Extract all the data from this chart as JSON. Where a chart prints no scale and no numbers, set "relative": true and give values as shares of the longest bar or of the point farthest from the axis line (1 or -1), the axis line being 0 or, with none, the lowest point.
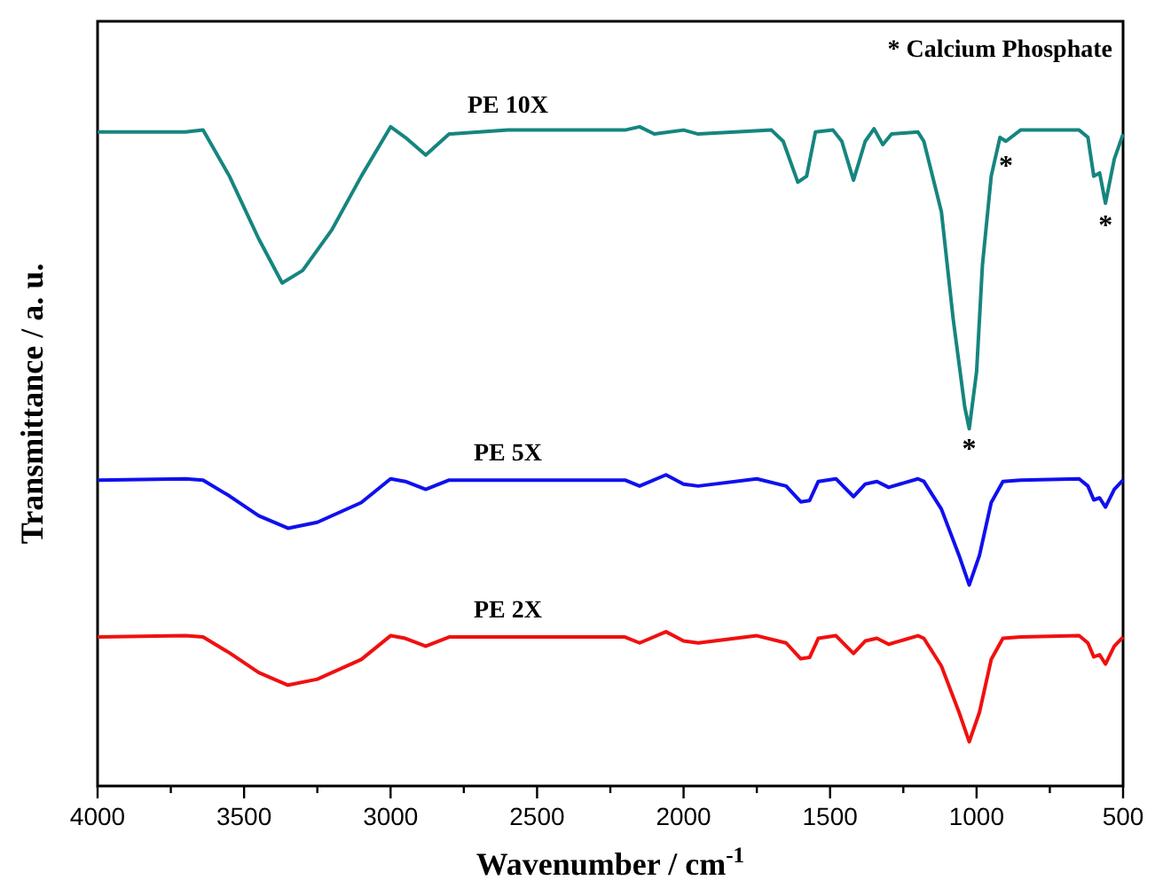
{
  "chart_data": {
    "type": "line",
    "relative": true,
    "xlabel": "Wavenumber / cm$^{-1}$",
    "ylabel": "Transmittance / a. u.",
    "xlim": [
      4000,
      500
    ],
    "xticks": [
      4000,
      {
        "value": 3750,
        "label": null
      },
      3500,
      {
        "value": 3250,
        "label": null
      },
      3000,
      {
        "value": 2750,
        "label": null
      },
      2500,
      {
        "value": 2250,
        "label": null
      },
      2000,
      {
        "value": 1750,
        "label": null
      },
      1500,
      {
        "value": 1250,
        "label": null
      },
      1000,
      {
        "value": 750,
        "label": null
      },
      500
    ],
    "tick_labels": "x",
    "grid": false,
    "legend": false,
    "marker": "none",
    "line_style": "solid",
    "annotations": [
      "* Calcium Phosphate",
      {
        "text": "*",
        "x": 1025,
        "y": 0.53
      },
      {
        "text": "*",
        "x": 900,
        "y": 0.96
      },
      {
        "text": "*",
        "x": 560,
        "y": 0.87
      }
    ],
    "series": [
      {
        "name": "PE 10X",
        "color": "#16857f",
        "x": [
          4000,
          3700,
          3640,
          3550,
          3450,
          3370,
          3300,
          3200,
          3100,
          3000,
          2950,
          2880,
          2800,
          2600,
          2200,
          2150,
          2100,
          2000,
          1950,
          1700,
          1660,
          1610,
          1580,
          1550,
          1490,
          1460,
          1420,
          1380,
          1350,
          1320,
          1290,
          1200,
          1180,
          1120,
          1080,
          1040,
          1025,
          1000,
          980,
          950,
          920,
          900,
          850,
          650,
          620,
          600,
          580,
          560,
          530,
          500
        ],
        "values": [
          0.992,
          0.992,
          0.995,
          0.925,
          0.83,
          0.763,
          0.782,
          0.844,
          0.925,
          1.0,
          0.984,
          0.957,
          0.989,
          0.995,
          0.995,
          1.0,
          0.989,
          0.995,
          0.989,
          0.995,
          0.978,
          0.916,
          0.925,
          0.992,
          0.995,
          0.978,
          0.919,
          0.978,
          0.997,
          0.973,
          0.989,
          0.992,
          0.978,
          0.871,
          0.709,
          0.574,
          0.542,
          0.628,
          0.79,
          0.925,
          0.984,
          0.978,
          0.995,
          0.995,
          0.984,
          0.925,
          0.93,
          0.884,
          0.951,
          0.989
        ]
      },
      {
        "name": "PE 5X",
        "color": "#1010ee",
        "x": [
          4000,
          3700,
          3640,
          3550,
          3450,
          3350,
          3250,
          3100,
          3000,
          2950,
          2880,
          2800,
          2200,
          2150,
          2060,
          2000,
          1950,
          1750,
          1650,
          1600,
          1570,
          1540,
          1480,
          1420,
          1380,
          1340,
          1300,
          1200,
          1180,
          1120,
          1060,
          1025,
          990,
          950,
          910,
          850,
          650,
          620,
          600,
          580,
          560,
          530,
          500
        ],
        "values": [
          0.464,
          0.466,
          0.464,
          0.44,
          0.41,
          0.391,
          0.4,
          0.43,
          0.466,
          0.462,
          0.45,
          0.464,
          0.464,
          0.455,
          0.472,
          0.458,
          0.455,
          0.466,
          0.455,
          0.431,
          0.433,
          0.462,
          0.466,
          0.439,
          0.458,
          0.462,
          0.453,
          0.466,
          0.462,
          0.42,
          0.35,
          0.305,
          0.35,
          0.43,
          0.462,
          0.464,
          0.466,
          0.455,
          0.434,
          0.437,
          0.423,
          0.45,
          0.464
        ]
      },
      {
        "name": "PE 2X",
        "color": "#f01010",
        "x": [
          4000,
          3700,
          3640,
          3550,
          3450,
          3350,
          3250,
          3100,
          3000,
          2950,
          2880,
          2800,
          2200,
          2150,
          2060,
          2000,
          1950,
          1750,
          1650,
          1600,
          1570,
          1540,
          1480,
          1420,
          1380,
          1340,
          1300,
          1200,
          1180,
          1120,
          1060,
          1025,
          990,
          950,
          910,
          850,
          650,
          620,
          600,
          580,
          560,
          530,
          500
        ],
        "values": [
          0.226,
          0.228,
          0.226,
          0.202,
          0.172,
          0.153,
          0.162,
          0.192,
          0.228,
          0.224,
          0.212,
          0.226,
          0.226,
          0.217,
          0.234,
          0.22,
          0.217,
          0.228,
          0.217,
          0.193,
          0.195,
          0.224,
          0.228,
          0.201,
          0.22,
          0.224,
          0.215,
          0.228,
          0.224,
          0.182,
          0.112,
          0.067,
          0.112,
          0.192,
          0.224,
          0.226,
          0.228,
          0.217,
          0.196,
          0.199,
          0.185,
          0.212,
          0.226
        ]
      }
    ]
  }
}
